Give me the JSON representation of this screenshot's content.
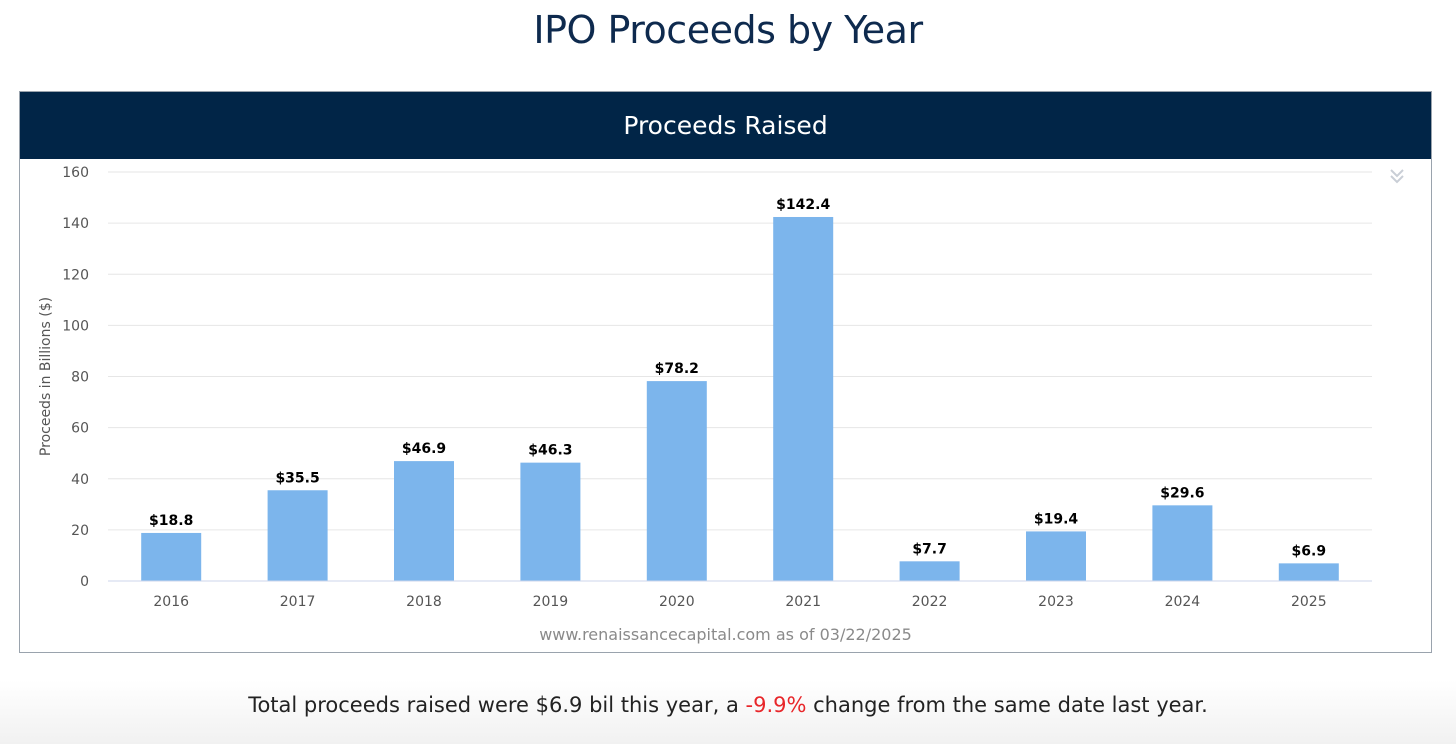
{
  "page_title": "IPO Proceeds by Year",
  "chart_header": "Proceeds Raised",
  "source_note": "www.renaissancecapital.com as of 03/22/2025",
  "summary": {
    "prefix": "Total proceeds raised were $6.9 bil this year, a ",
    "change": "-9.9%",
    "suffix": " change from the same date last year."
  },
  "colors": {
    "bar": "#7cb5ec",
    "header_bg": "#012547",
    "negative": "#e8262a"
  },
  "icons": {
    "export": "double-chevron-down-icon"
  },
  "chart_data": {
    "type": "bar",
    "title": "Proceeds Raised",
    "ylabel": "Proceeds in Billions ($)",
    "xlabel": "",
    "categories": [
      "2016",
      "2017",
      "2018",
      "2019",
      "2020",
      "2021",
      "2022",
      "2023",
      "2024",
      "2025"
    ],
    "values": [
      18.8,
      35.5,
      46.9,
      46.3,
      78.2,
      142.4,
      7.7,
      19.4,
      29.6,
      6.9
    ],
    "data_labels": [
      "$18.8",
      "$35.5",
      "$46.9",
      "$46.3",
      "$78.2",
      "$142.4",
      "$7.7",
      "$19.4",
      "$29.6",
      "$6.9"
    ],
    "ylim": [
      0,
      160
    ],
    "yticks": [
      "0",
      "20",
      "40",
      "60",
      "80",
      "100",
      "120",
      "140",
      "160"
    ],
    "grid": true,
    "legend": "none"
  }
}
